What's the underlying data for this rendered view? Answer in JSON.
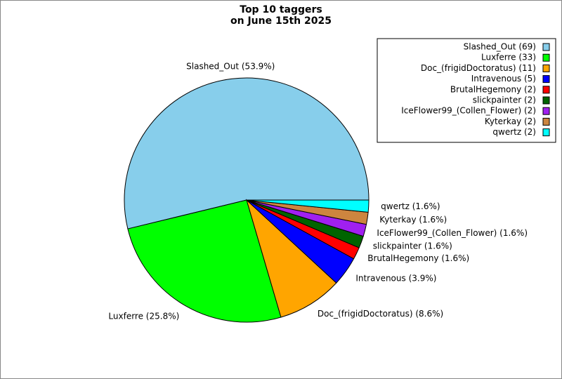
{
  "chart_data": {
    "type": "pie",
    "title": [
      "Top 10 taggers",
      "on June 15th 2025"
    ],
    "categories": [
      "Slashed_Out (69)",
      "Luxferre (33)",
      "Doc_(frigidDoctoratus) (11)",
      "Intravenous (5)",
      "BrutalHegemony (2)",
      "slickpainter (2)",
      "IceFlower99_(Collen_Flower) (2)",
      "Kyterkay (2)",
      "qwertz (2)"
    ],
    "values": [
      53.9,
      25.8,
      8.6,
      3.9,
      1.6,
      1.6,
      1.6,
      1.6,
      1.6
    ],
    "value_labels": [
      "Slashed_Out (53.9%)",
      "Luxferre (25.8%)",
      "Doc_(frigidDoctoratus) (8.6%)",
      "Intravenous (3.9%)",
      "BrutalHegemony (1.6%)",
      "slickpainter (1.6%)",
      "IceFlower99_(Collen_Flower) (1.6%)",
      "Kyterkay (1.6%)",
      "qwertz (1.6%)"
    ],
    "colors": [
      "#87ceeb",
      "#00ff00",
      "#ffa500",
      "#0000ff",
      "#ff0000",
      "#006400",
      "#a020f0",
      "#cd853f",
      "#00ffff"
    ],
    "legend": "upper right"
  }
}
